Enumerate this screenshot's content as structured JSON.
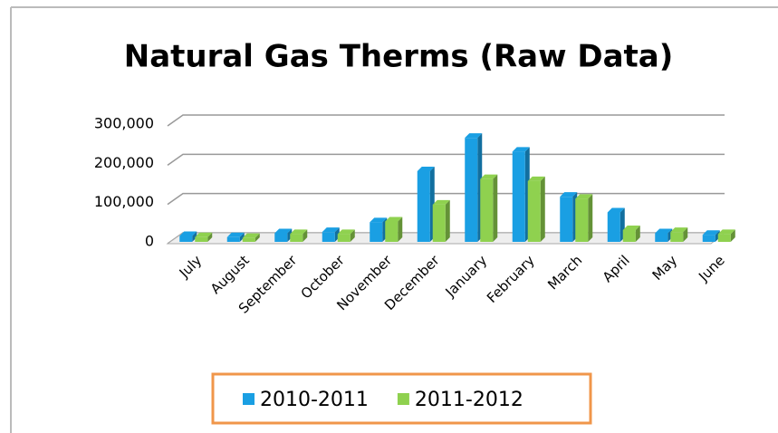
{
  "chart_data": {
    "type": "bar",
    "title": "Natural Gas Therms (Raw Data)",
    "categories": [
      "July",
      "August",
      "September",
      "October",
      "November",
      "December",
      "January",
      "February",
      "March",
      "April",
      "May",
      "June"
    ],
    "series": [
      {
        "name": "2010-2011",
        "color": "#1a9fe3",
        "values": [
          15000,
          12000,
          22000,
          25000,
          50000,
          180000,
          265000,
          230000,
          115000,
          75000,
          22000,
          18000
        ]
      },
      {
        "name": "2011-2012",
        "color": "#8fd14f",
        "values": [
          12000,
          10000,
          20000,
          20000,
          52000,
          95000,
          160000,
          155000,
          110000,
          30000,
          25000,
          20000
        ]
      }
    ],
    "ylim": [
      0,
      300000
    ],
    "yticks": [
      0,
      {
        "value": 100000,
        "label": "100,000"
      },
      {
        "value": 200000,
        "label": "200,000"
      },
      {
        "value": 300000,
        "label": "300,000"
      }
    ],
    "grid": true,
    "legend": "bottom"
  }
}
